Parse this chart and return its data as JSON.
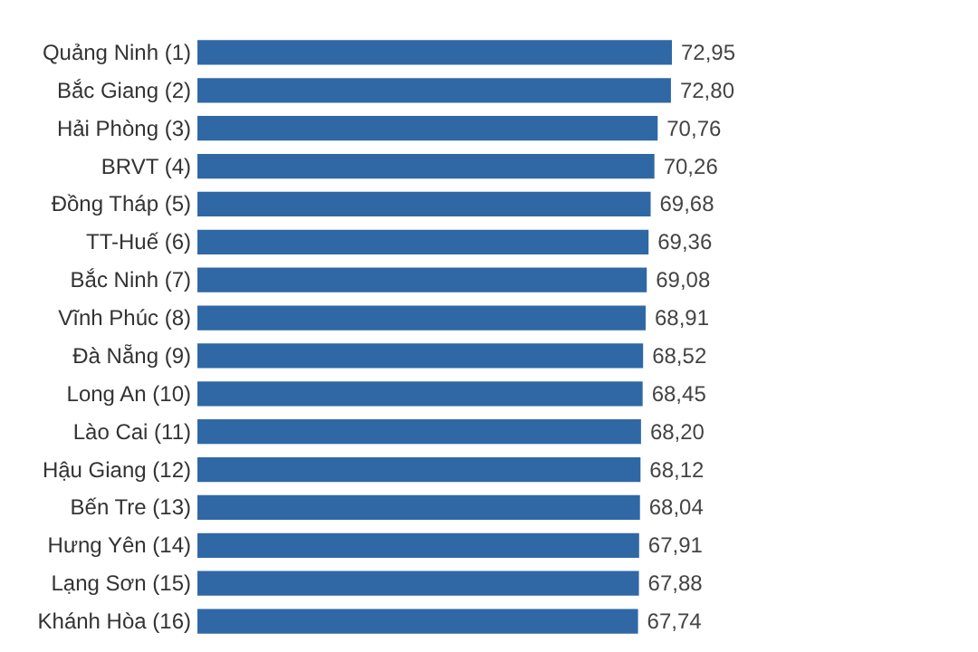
{
  "chart_data": {
    "type": "bar",
    "orientation": "horizontal",
    "color": "#2f68a5",
    "categories": [
      "Quảng Ninh (1)",
      "Bắc Giang (2)",
      "Hải Phòng (3)",
      "BRVT (4)",
      "Đồng Tháp (5)",
      "TT-Huế (6)",
      "Bắc Ninh (7)",
      "Vĩnh Phúc (8)",
      "Đà Nẵng (9)",
      "Long An (10)",
      "Lào Cai (11)",
      "Hậu Giang (12)",
      "Bến Tre (13)",
      "Hưng Yên (14)",
      "Lạng Sơn (15)",
      "Khánh Hòa (16)"
    ],
    "values": [
      72.95,
      72.8,
      70.76,
      70.26,
      69.68,
      69.36,
      69.08,
      68.91,
      68.52,
      68.45,
      68.2,
      68.12,
      68.04,
      67.91,
      67.88,
      67.74
    ],
    "value_labels": [
      "72,95",
      "72,80",
      "70,76",
      "70,26",
      "69,68",
      "69,36",
      "69,08",
      "68,91",
      "68,52",
      "68,45",
      "68,20",
      "68,12",
      "68,04",
      "67,91",
      "67,88",
      "67,74"
    ]
  }
}
